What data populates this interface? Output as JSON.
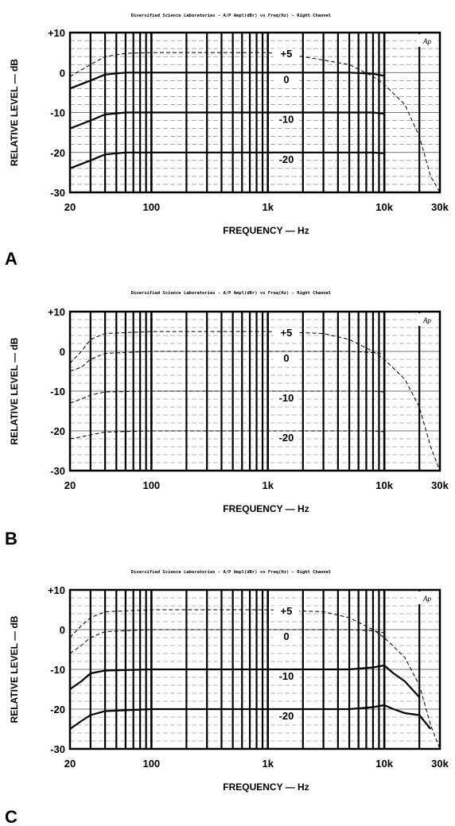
{
  "chart_data": [
    {
      "panel": "A",
      "type": "line",
      "title": "Diversified Science Laboratories - A/P Ampl(dBr) vs Freq(Hz) - Right Channel",
      "xlabel": "FREQUENCY — Hz",
      "ylabel": "RELATIVE LEVEL — dB",
      "xscale": "log",
      "xlim": [
        20,
        30000
      ],
      "ylim": [
        -30,
        10
      ],
      "xticks": [
        {
          "v": 20,
          "t": "20"
        },
        {
          "v": 100,
          "t": "100"
        },
        {
          "v": 1000,
          "t": "1k"
        },
        {
          "v": 10000,
          "t": "10k"
        },
        {
          "v": 30000,
          "t": "30k"
        }
      ],
      "yticks": [
        {
          "v": 10,
          "t": "+10"
        },
        {
          "v": 0,
          "t": "0"
        },
        {
          "v": -10,
          "t": "-10"
        },
        {
          "v": -20,
          "t": "-20"
        },
        {
          "v": -30,
          "t": "-30"
        }
      ],
      "grid": true,
      "logo": "Ap",
      "series": [
        {
          "name": "+5",
          "style": "dashed",
          "x": [
            20,
            30,
            40,
            60,
            100,
            200,
            1000,
            2000,
            5000,
            8000,
            10000,
            15000,
            20000,
            25000,
            30000
          ],
          "y": [
            -1,
            2,
            4,
            4.8,
            5,
            5,
            5,
            4,
            2,
            -1,
            -3,
            -8,
            -16,
            -26,
            -30
          ]
        },
        {
          "name": "0",
          "style": "solid",
          "x": [
            20,
            30,
            40,
            60,
            100,
            1000,
            5000,
            8000,
            10000
          ],
          "y": [
            -4,
            -2,
            -0.5,
            0,
            0,
            0,
            0,
            -0.3,
            -0.8
          ]
        },
        {
          "name": "-10",
          "style": "solid",
          "x": [
            20,
            30,
            40,
            60,
            100,
            1000,
            5000,
            8000,
            10000
          ],
          "y": [
            -14,
            -12,
            -10.5,
            -10,
            -10,
            -10,
            -10,
            -10,
            -10.3
          ]
        },
        {
          "name": "-20",
          "style": "solid",
          "x": [
            20,
            30,
            40,
            60,
            100,
            1000,
            5000,
            8000,
            10000
          ],
          "y": [
            -24,
            -22,
            -20.5,
            -20,
            -20,
            -20,
            -20,
            -20,
            -20.2
          ]
        }
      ]
    },
    {
      "panel": "B",
      "type": "line",
      "title": "Diversified Science Laboratories - A/P Ampl(dBr) vs Freq(Hz) - Right Channel",
      "xlabel": "FREQUENCY — Hz",
      "ylabel": "RELATIVE LEVEL — dB",
      "xscale": "log",
      "xlim": [
        20,
        30000
      ],
      "ylim": [
        -30,
        10
      ],
      "xticks": [
        {
          "v": 20,
          "t": "20"
        },
        {
          "v": 100,
          "t": "100"
        },
        {
          "v": 1000,
          "t": "1k"
        },
        {
          "v": 10000,
          "t": "10k"
        },
        {
          "v": 30000,
          "t": "30k"
        }
      ],
      "yticks": [
        {
          "v": 10,
          "t": "+10"
        },
        {
          "v": 0,
          "t": "0"
        },
        {
          "v": -10,
          "t": "-10"
        },
        {
          "v": -20,
          "t": "-20"
        },
        {
          "v": -30,
          "t": "-30"
        }
      ],
      "grid": true,
      "logo": "Ap",
      "series": [
        {
          "name": "+5",
          "style": "dashed",
          "x": [
            20,
            25,
            30,
            40,
            100,
            1000,
            3000,
            5000,
            8000,
            10000,
            15000,
            20000,
            25000,
            30000
          ],
          "y": [
            -3,
            0,
            3,
            4.5,
            5,
            5,
            4.5,
            3,
            0,
            -2,
            -7,
            -14,
            -24,
            -30
          ]
        },
        {
          "name": "0",
          "style": "dashed",
          "x": [
            20,
            25,
            30,
            40,
            100,
            1000,
            5000,
            8000,
            10000
          ],
          "y": [
            -5,
            -4,
            -2,
            -0.5,
            0,
            0,
            0,
            -0.3,
            -0.6
          ]
        },
        {
          "name": "-10",
          "style": "dashed",
          "x": [
            20,
            25,
            30,
            40,
            100,
            1000,
            5000,
            8000,
            10000
          ],
          "y": [
            -13,
            -12,
            -11,
            -10.2,
            -10,
            -10,
            -10,
            -10,
            -10.2
          ]
        },
        {
          "name": "-20",
          "style": "dashed",
          "x": [
            20,
            25,
            30,
            40,
            100,
            1000,
            5000,
            8000,
            10000
          ],
          "y": [
            -22,
            -21.5,
            -21,
            -20.3,
            -20,
            -20,
            -20,
            -20,
            -20.2
          ]
        }
      ]
    },
    {
      "panel": "C",
      "type": "line",
      "title": "Diversified Science Laboratories - A/P Ampl(dBr) vs Freq(Hz) - Right Channel",
      "xlabel": "FREQUENCY — Hz",
      "ylabel": "RELATIVE LEVEL — dB",
      "xscale": "log",
      "xlim": [
        20,
        30000
      ],
      "ylim": [
        -30,
        10
      ],
      "xticks": [
        {
          "v": 20,
          "t": "20"
        },
        {
          "v": 100,
          "t": "100"
        },
        {
          "v": 1000,
          "t": "1k"
        },
        {
          "v": 10000,
          "t": "10k"
        },
        {
          "v": 30000,
          "t": "30k"
        }
      ],
      "yticks": [
        {
          "v": 10,
          "t": "+10"
        },
        {
          "v": 0,
          "t": "0"
        },
        {
          "v": -10,
          "t": "-10"
        },
        {
          "v": -20,
          "t": "-20"
        },
        {
          "v": -30,
          "t": "-30"
        }
      ],
      "grid": true,
      "logo": "Ap",
      "series": [
        {
          "name": "+5",
          "style": "dashed",
          "x": [
            20,
            25,
            30,
            40,
            100,
            1000,
            3000,
            5000,
            8000,
            10000,
            15000,
            20000,
            25000,
            30000
          ],
          "y": [
            -2,
            1,
            3,
            4.5,
            5,
            5,
            4.5,
            3,
            0,
            -2,
            -7,
            -14,
            -24,
            -30
          ]
        },
        {
          "name": "0",
          "style": "dashed",
          "x": [
            20,
            25,
            30,
            40,
            100,
            1000,
            5000,
            8000,
            10000
          ],
          "y": [
            -6,
            -4,
            -2,
            -0.5,
            0,
            0,
            0,
            -0.3,
            -0.8
          ]
        },
        {
          "name": "-10",
          "style": "solid",
          "x": [
            20,
            25,
            30,
            40,
            100,
            1000,
            5000,
            8000,
            10000,
            12000,
            15000,
            20000
          ],
          "y": [
            -15,
            -13,
            -11,
            -10.3,
            -10,
            -10,
            -10,
            -9.5,
            -9,
            -11,
            -13,
            -17
          ]
        },
        {
          "name": "-20",
          "style": "solid",
          "x": [
            20,
            25,
            30,
            40,
            100,
            1000,
            5000,
            8000,
            10000,
            12000,
            15000,
            20000,
            25000
          ],
          "y": [
            -25,
            -23,
            -21.5,
            -20.5,
            -20,
            -20,
            -20,
            -19.5,
            -19,
            -20,
            -21,
            -21.5,
            -25
          ]
        }
      ]
    }
  ]
}
